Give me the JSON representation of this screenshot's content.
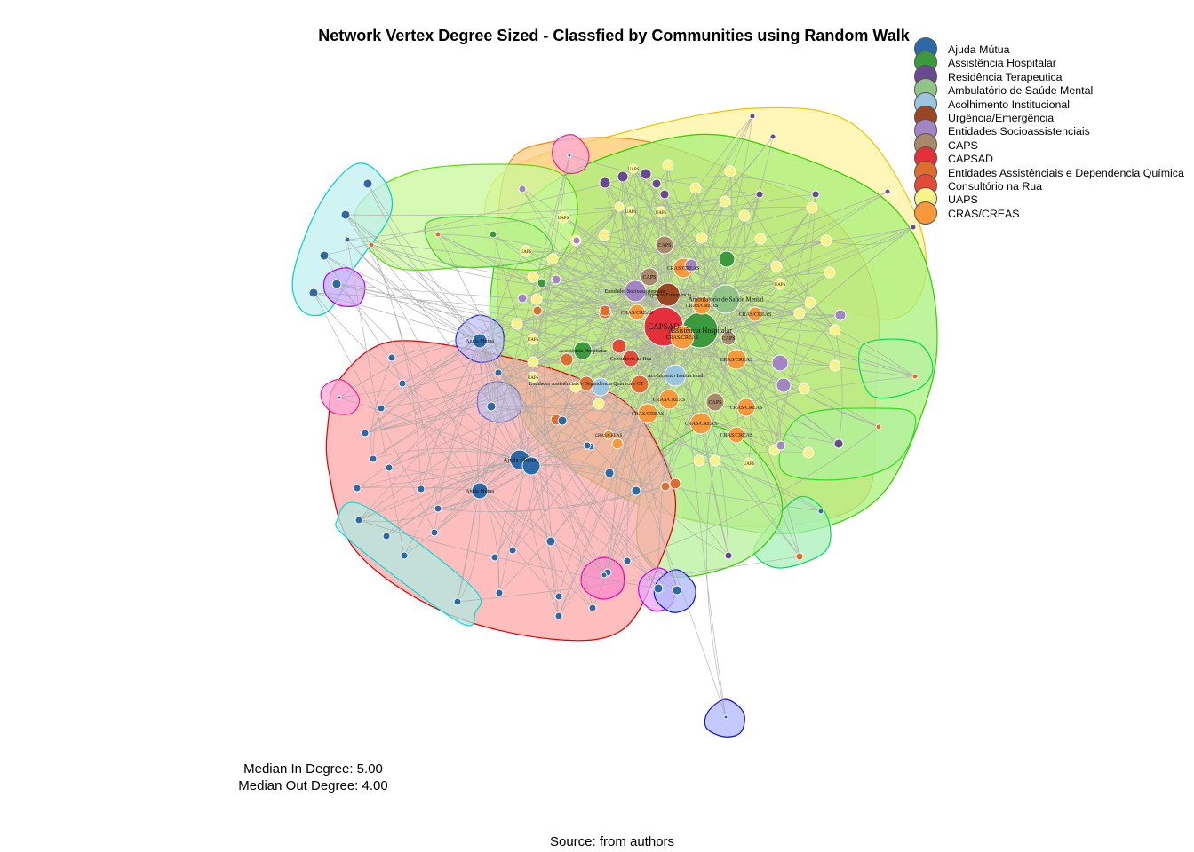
{
  "title": "Network Vertex Degree Sized - Classfied by Communities using Random Walk",
  "legend": [
    {
      "label": "Ajuda Mútua",
      "color": "#2b6aa6"
    },
    {
      "label": "Assistência Hospitalar",
      "color": "#3a9a3c"
    },
    {
      "label": "Residência Terapeutica",
      "color": "#6a4a8e"
    },
    {
      "label": "Ambulatório de Saúde Mental",
      "color": "#90c587"
    },
    {
      "label": "Acolhimento Institucional",
      "color": "#9cc5e0"
    },
    {
      "label": "Urgência/Emergência",
      "color": "#9a4623"
    },
    {
      "label": "Entidades Socioassistenciais",
      "color": "#a286c4"
    },
    {
      "label": "CAPS",
      "color": "#a8896a"
    },
    {
      "label": "CAPSAD",
      "color": "#e3303b"
    },
    {
      "label": "Entidades Assistênciais e Dependencia Química",
      "color": "#e06c2d"
    },
    {
      "label": "Consultório na Rua",
      "color": "#e44b37"
    },
    {
      "label": "UAPS",
      "color": "#f7f28a"
    },
    {
      "label": "CRAS/CREAS",
      "color": "#f7983a"
    }
  ],
  "stats": {
    "median_in": "Median In Degree: 5.00",
    "median_out": "Median Out Degree: 4.00"
  },
  "source": "Source: from authors",
  "node_labels": {
    "capsad": "CAPSAD",
    "assist_hosp_main": "Assistência Hospitalar",
    "ambulatorio": "Ambulatório de Saúde Mental",
    "cras": "CRAS/CREAS",
    "caps": "CAPS",
    "uaps": "UAPS",
    "urgencia": "Urgência/Emergência",
    "entidades_socio": "Entidades Socioassistenciais",
    "acolhimento": "Acolhimento Institucional",
    "consultorio": "Consultório na Rua",
    "entidades_dq": "Entidades Assistênciais e Dependencia Química e CT",
    "ajuda": "Ajuda Mútua",
    "residencia": "Residência Terapeutica"
  }
}
